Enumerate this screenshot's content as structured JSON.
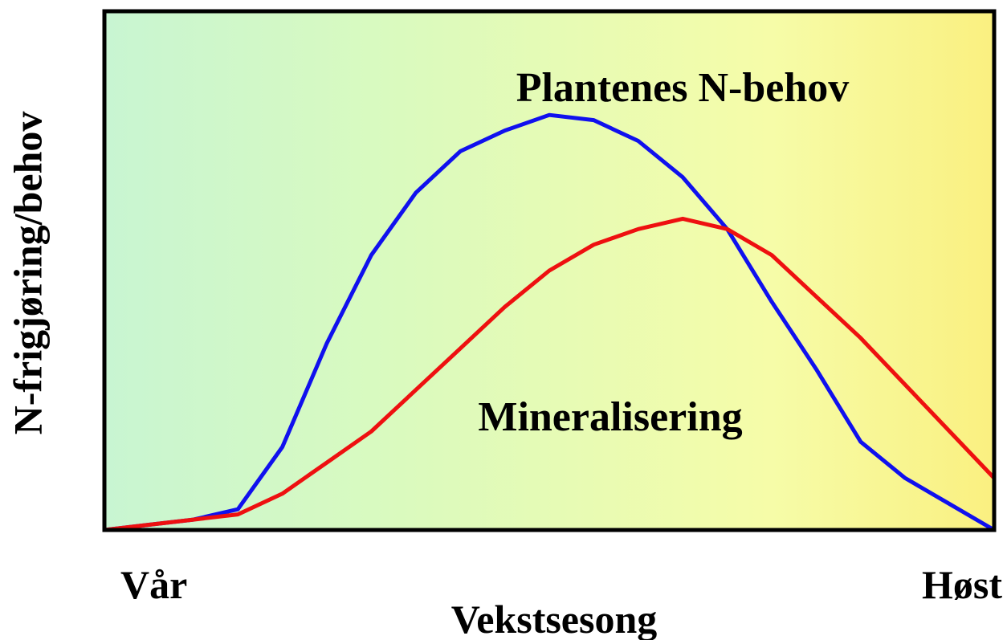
{
  "chart_data": {
    "type": "line",
    "ylabel": "N-frigjøring/behov",
    "xlabel": "Vekstsesong",
    "categories": [
      "Vår",
      null,
      null,
      null,
      null,
      null,
      null,
      null,
      null,
      null,
      null,
      null,
      null,
      null,
      null,
      null,
      null,
      null,
      null,
      null,
      "Høst"
    ],
    "ylim": [
      0,
      100
    ],
    "series": [
      {
        "name": "Plantenes N-behov",
        "color": "#1010ee",
        "values": [
          0,
          1,
          2,
          4,
          16,
          36,
          53,
          65,
          73,
          77,
          80,
          79,
          75,
          68,
          58,
          44,
          31,
          17,
          10,
          5,
          0
        ]
      },
      {
        "name": "Mineralisering",
        "color": "#ee1010",
        "values": [
          0,
          1,
          2,
          3,
          7,
          13,
          19,
          27,
          35,
          43,
          50,
          55,
          58,
          60,
          58,
          53,
          45,
          37,
          28,
          19,
          10
        ]
      }
    ]
  }
}
